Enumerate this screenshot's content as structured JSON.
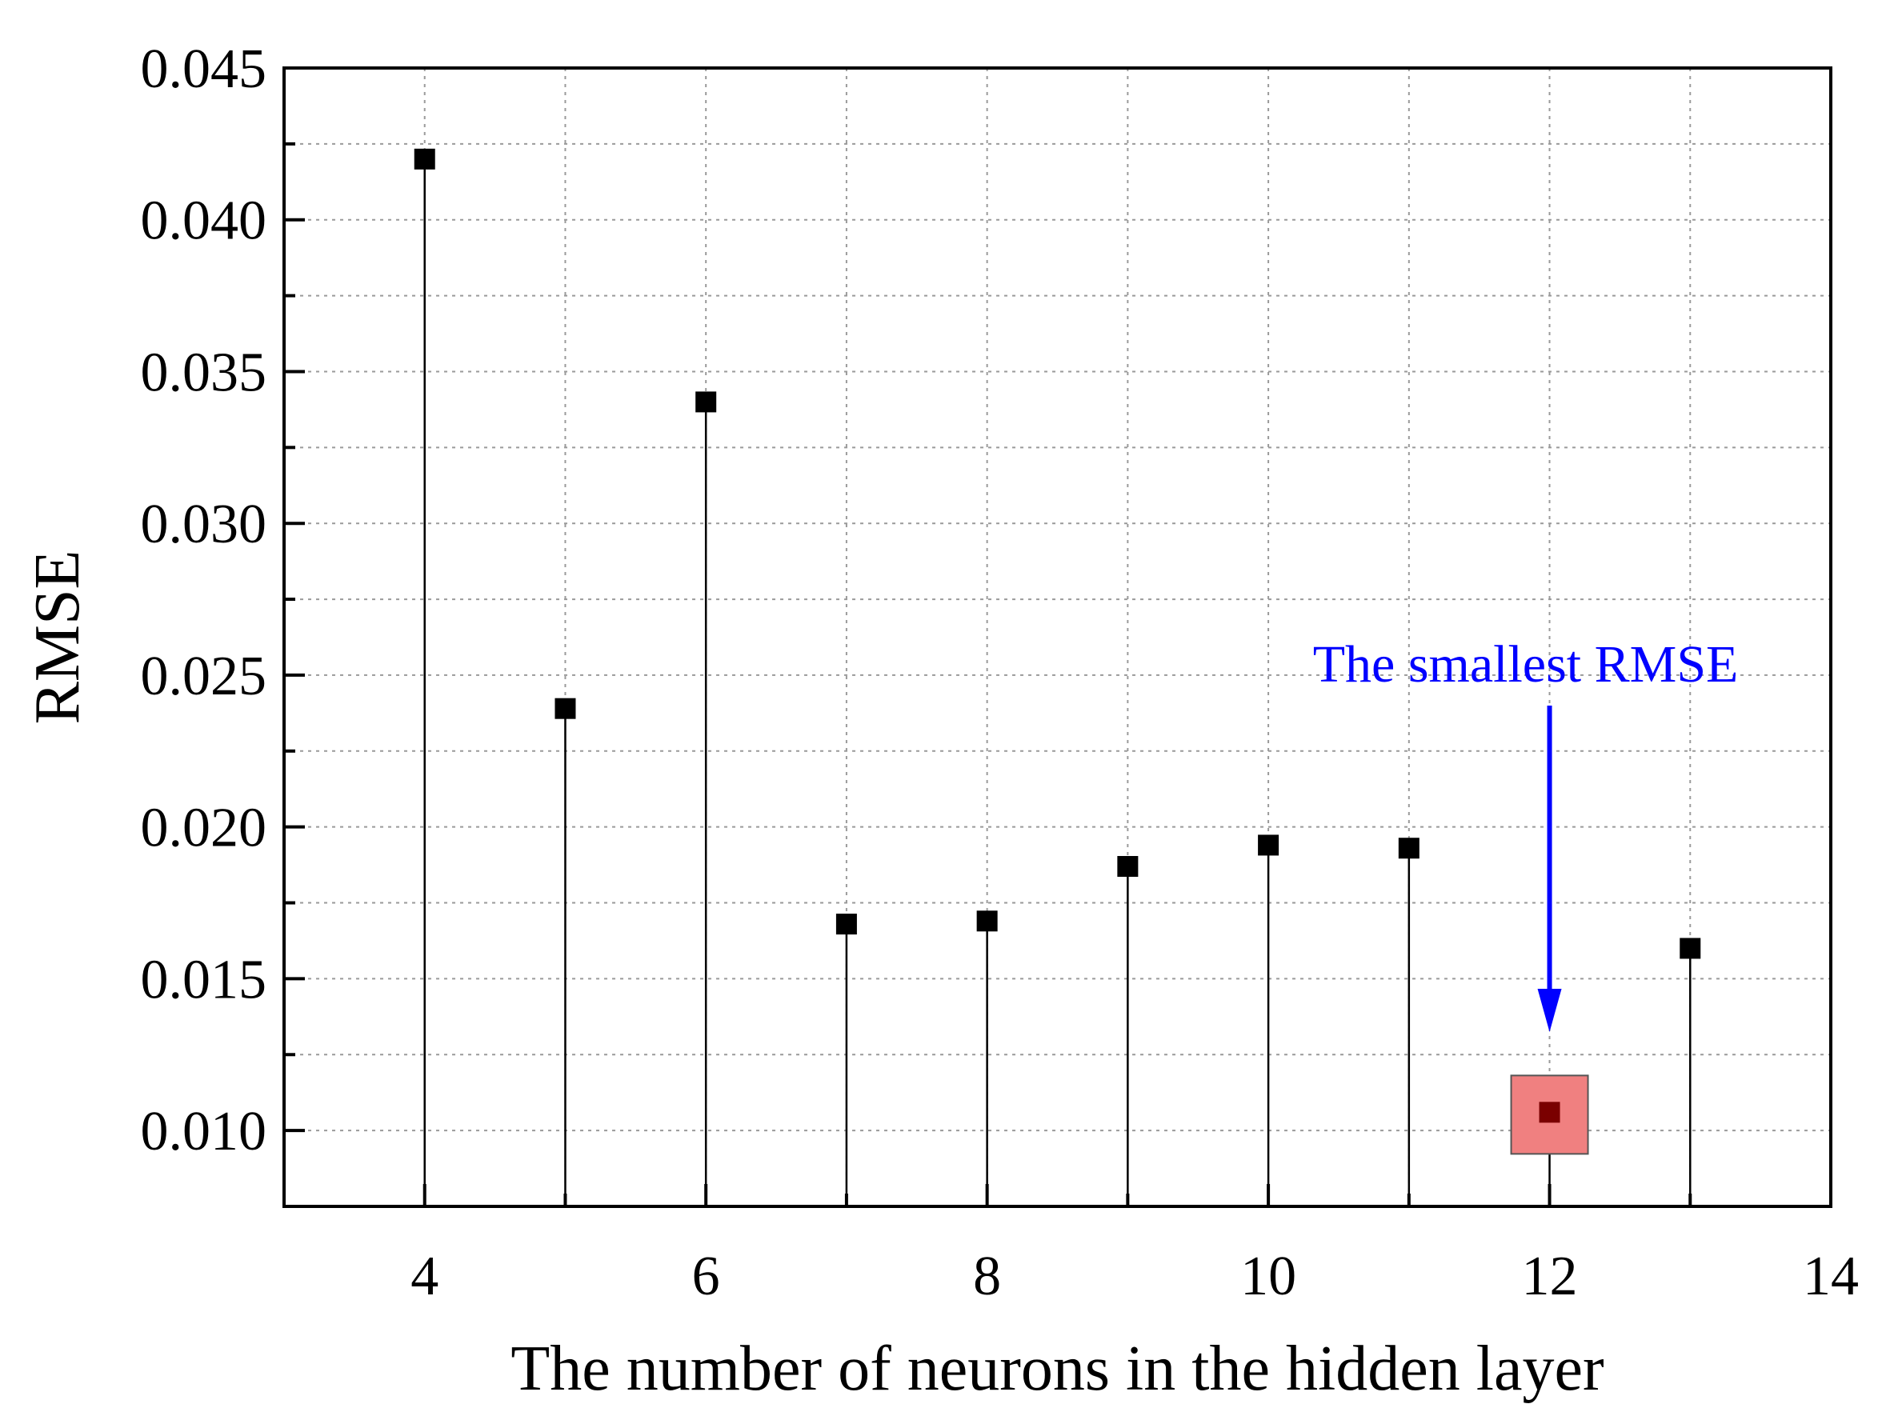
{
  "chart_data": {
    "type": "scatter",
    "style": "stem",
    "xlabel": "The number of neurons in the hidden layer",
    "ylabel": "RMSE",
    "xlim": [
      3,
      14
    ],
    "ylim": [
      0.0075,
      0.045
    ],
    "x_ticks": [
      4,
      6,
      8,
      10,
      12,
      14
    ],
    "y_ticks": [
      0.01,
      0.015,
      0.02,
      0.025,
      0.03,
      0.035,
      0.04,
      0.045
    ],
    "x_tick_labels": [
      "4",
      "6",
      "8",
      "10",
      "12",
      "14"
    ],
    "y_tick_labels": [
      "0.010",
      "0.015",
      "0.020",
      "0.025",
      "0.030",
      "0.035",
      "0.040",
      "0.045"
    ],
    "grid": true,
    "series": [
      {
        "x": [
          4,
          5,
          6,
          7,
          8,
          9,
          10,
          11,
          12,
          13
        ],
        "values": [
          0.042,
          0.0239,
          0.034,
          0.0168,
          0.0169,
          0.0187,
          0.0194,
          0.0193,
          0.0106,
          0.016
        ]
      }
    ],
    "annotation": {
      "text": "The smallest RMSE",
      "x": 12,
      "y": 0.0106,
      "color": "#0000ff",
      "highlight_color": "#f08080"
    }
  }
}
